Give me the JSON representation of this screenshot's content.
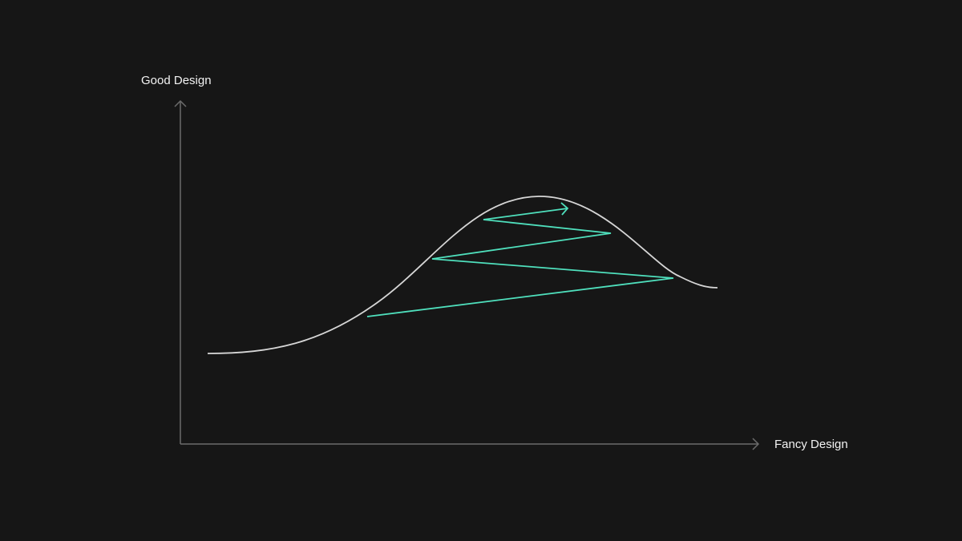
{
  "diagram": {
    "y_axis_label": "Good Design",
    "x_axis_label": "Fancy Design",
    "colors": {
      "background": "#161616",
      "axis": "#6b6b6b",
      "curve": "#d6d6d6",
      "zigzag": "#4fe0bd",
      "text": "#f2f2f2"
    }
  }
}
